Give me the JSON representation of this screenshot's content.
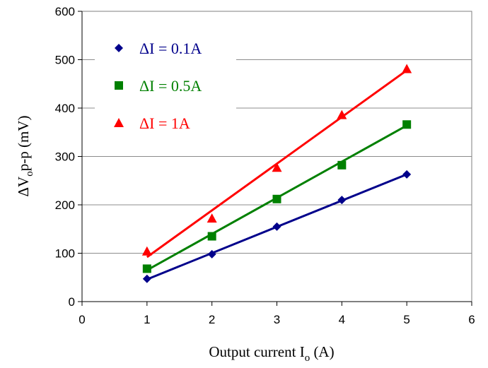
{
  "chart_data": {
    "type": "scatter",
    "title": "",
    "xlabel": {
      "main": "Output current I",
      "sub": "o",
      "tail": " (A)"
    },
    "ylabel": {
      "main": "ΔV",
      "sub": "o",
      "tail": "p-p (mV)"
    },
    "xlim": [
      0,
      6
    ],
    "ylim": [
      0,
      600
    ],
    "xticks": [
      0,
      1,
      2,
      3,
      4,
      5,
      6
    ],
    "yticks": [
      0,
      100,
      200,
      300,
      400,
      500,
      600
    ],
    "grid": "horizontal",
    "legend_position": "top-left",
    "series": [
      {
        "name": "ΔI = 0.1A",
        "color": "#00008b",
        "marker": "diamond",
        "points": [
          [
            1,
            47
          ],
          [
            2,
            98
          ],
          [
            3,
            155
          ],
          [
            4,
            210
          ],
          [
            5,
            263
          ]
        ],
        "fit": [
          [
            1,
            46
          ],
          [
            5,
            263
          ]
        ]
      },
      {
        "name": "ΔI = 0.5A",
        "color": "#008000",
        "marker": "square",
        "points": [
          [
            1,
            68
          ],
          [
            2,
            135
          ],
          [
            3,
            212
          ],
          [
            4,
            282
          ],
          [
            5,
            366
          ]
        ],
        "fit": [
          [
            1,
            65
          ],
          [
            5,
            364
          ]
        ]
      },
      {
        "name": "ΔI = 1A",
        "color": "#ff0000",
        "marker": "triangle",
        "points": [
          [
            1,
            104
          ],
          [
            2,
            172
          ],
          [
            3,
            277
          ],
          [
            4,
            386
          ],
          [
            5,
            481
          ]
        ],
        "fit": [
          [
            1,
            92
          ],
          [
            5,
            478
          ]
        ]
      }
    ]
  }
}
